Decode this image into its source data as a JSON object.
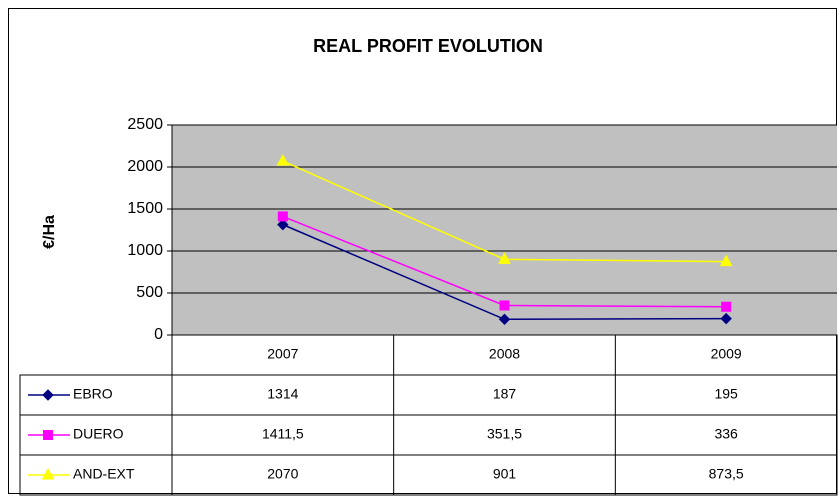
{
  "chart_data": {
    "type": "line",
    "title": "REAL PROFIT EVOLUTION",
    "y_label": "€/Ha",
    "categories": [
      "2007",
      "2008",
      "2009"
    ],
    "series": [
      {
        "name": "EBRO",
        "color": "#000080",
        "marker": "diamond",
        "values": [
          1314,
          187,
          195
        ]
      },
      {
        "name": "DUERO",
        "color": "#ff00ff",
        "marker": "square",
        "values": [
          1411.5,
          351.5,
          336
        ],
        "value_labels": [
          "1411,5",
          "351,5",
          "336"
        ]
      },
      {
        "name": "AND-EXT",
        "color": "#ffff00",
        "marker": "triangle",
        "values": [
          2070,
          901,
          873.5
        ],
        "value_labels": [
          "2070",
          "901",
          "873,5"
        ]
      }
    ],
    "ylim": [
      0,
      2500
    ],
    "yticks": [
      0,
      500,
      1000,
      1500,
      2000,
      2500
    ],
    "grid": true,
    "data_table": true
  }
}
